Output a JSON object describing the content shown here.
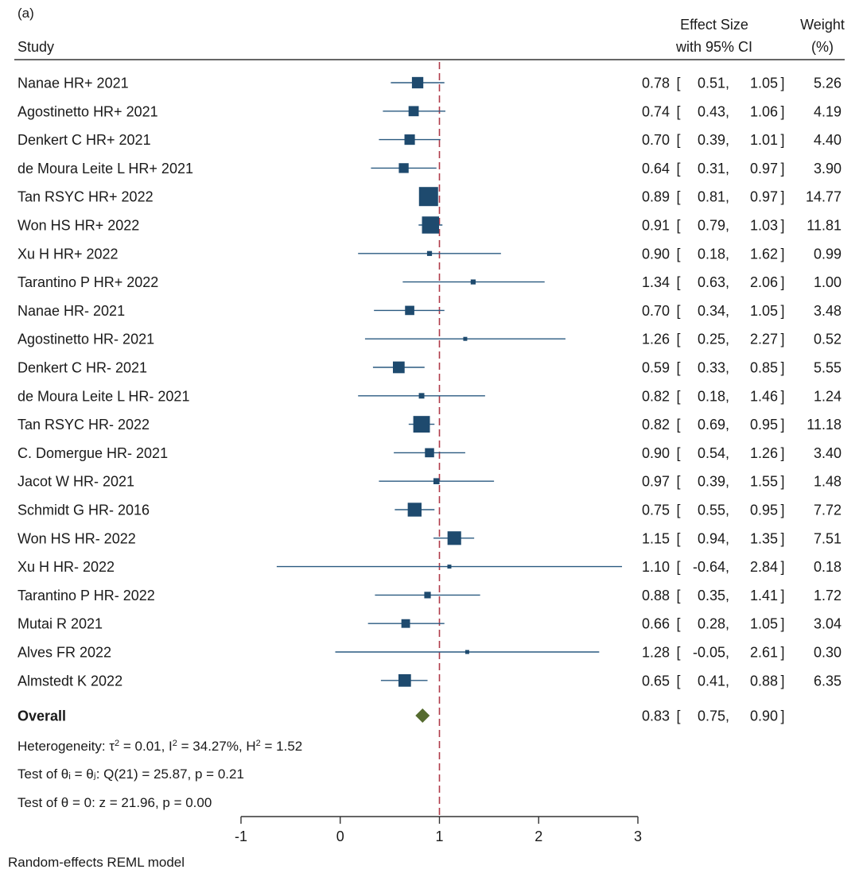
{
  "panel_label": "(a)",
  "headers": {
    "study": "Study",
    "effect_line1": "Effect Size",
    "effect_line2": "with 95% CI",
    "weight_line1": "Weight",
    "weight_line2": "(%)"
  },
  "chart_data": {
    "type": "forest",
    "xlim": [
      -1,
      3
    ],
    "x_ticks": [
      -1,
      0,
      1,
      2,
      3
    ],
    "reference_line": 1,
    "studies": [
      {
        "label": "Nanae HR+ 2021",
        "es": 0.78,
        "lo": 0.51,
        "hi": 1.05,
        "es_text": "0.78",
        "lo_text": "0.51",
        "hi_text": "1.05",
        "weight": 5.26,
        "weight_text": "5.26"
      },
      {
        "label": "Agostinetto HR+ 2021",
        "es": 0.74,
        "lo": 0.43,
        "hi": 1.06,
        "es_text": "0.74",
        "lo_text": "0.43",
        "hi_text": "1.06",
        "weight": 4.19,
        "weight_text": "4.19"
      },
      {
        "label": "Denkert C HR+ 2021",
        "es": 0.7,
        "lo": 0.39,
        "hi": 1.01,
        "es_text": "0.70",
        "lo_text": "0.39",
        "hi_text": "1.01",
        "weight": 4.4,
        "weight_text": "4.40"
      },
      {
        "label": "de Moura Leite L HR+ 2021",
        "es": 0.64,
        "lo": 0.31,
        "hi": 0.97,
        "es_text": "0.64",
        "lo_text": "0.31",
        "hi_text": "0.97",
        "weight": 3.9,
        "weight_text": "3.90"
      },
      {
        "label": "Tan RSYC HR+ 2022",
        "es": 0.89,
        "lo": 0.81,
        "hi": 0.97,
        "es_text": "0.89",
        "lo_text": "0.81",
        "hi_text": "0.97",
        "weight": 14.77,
        "weight_text": "14.77"
      },
      {
        "label": "Won HS HR+ 2022",
        "es": 0.91,
        "lo": 0.79,
        "hi": 1.03,
        "es_text": "0.91",
        "lo_text": "0.79",
        "hi_text": "1.03",
        "weight": 11.81,
        "weight_text": "11.81"
      },
      {
        "label": "Xu H HR+ 2022",
        "es": 0.9,
        "lo": 0.18,
        "hi": 1.62,
        "es_text": "0.90",
        "lo_text": "0.18",
        "hi_text": "1.62",
        "weight": 0.99,
        "weight_text": "0.99"
      },
      {
        "label": "Tarantino P HR+ 2022",
        "es": 1.34,
        "lo": 0.63,
        "hi": 2.06,
        "es_text": "1.34",
        "lo_text": "0.63",
        "hi_text": "2.06",
        "weight": 1.0,
        "weight_text": "1.00"
      },
      {
        "label": "Nanae HR- 2021",
        "es": 0.7,
        "lo": 0.34,
        "hi": 1.05,
        "es_text": "0.70",
        "lo_text": "0.34",
        "hi_text": "1.05",
        "weight": 3.48,
        "weight_text": "3.48"
      },
      {
        "label": "Agostinetto HR- 2021",
        "es": 1.26,
        "lo": 0.25,
        "hi": 2.27,
        "es_text": "1.26",
        "lo_text": "0.25",
        "hi_text": "2.27",
        "weight": 0.52,
        "weight_text": "0.52"
      },
      {
        "label": "Denkert C HR- 2021",
        "es": 0.59,
        "lo": 0.33,
        "hi": 0.85,
        "es_text": "0.59",
        "lo_text": "0.33",
        "hi_text": "0.85",
        "weight": 5.55,
        "weight_text": "5.55"
      },
      {
        "label": "de Moura Leite L HR- 2021",
        "es": 0.82,
        "lo": 0.18,
        "hi": 1.46,
        "es_text": "0.82",
        "lo_text": "0.18",
        "hi_text": "1.46",
        "weight": 1.24,
        "weight_text": "1.24"
      },
      {
        "label": "Tan RSYC HR- 2022",
        "es": 0.82,
        "lo": 0.69,
        "hi": 0.95,
        "es_text": "0.82",
        "lo_text": "0.69",
        "hi_text": "0.95",
        "weight": 11.18,
        "weight_text": "11.18"
      },
      {
        "label": "C. Domergue HR- 2021",
        "es": 0.9,
        "lo": 0.54,
        "hi": 1.26,
        "es_text": "0.90",
        "lo_text": "0.54",
        "hi_text": "1.26",
        "weight": 3.4,
        "weight_text": "3.40"
      },
      {
        "label": "Jacot W HR- 2021",
        "es": 0.97,
        "lo": 0.39,
        "hi": 1.55,
        "es_text": "0.97",
        "lo_text": "0.39",
        "hi_text": "1.55",
        "weight": 1.48,
        "weight_text": "1.48"
      },
      {
        "label": "Schmidt G HR- 2016",
        "es": 0.75,
        "lo": 0.55,
        "hi": 0.95,
        "es_text": "0.75",
        "lo_text": "0.55",
        "hi_text": "0.95",
        "weight": 7.72,
        "weight_text": "7.72"
      },
      {
        "label": "Won HS HR- 2022",
        "es": 1.15,
        "lo": 0.94,
        "hi": 1.35,
        "es_text": "1.15",
        "lo_text": "0.94",
        "hi_text": "1.35",
        "weight": 7.51,
        "weight_text": "7.51"
      },
      {
        "label": "Xu H HR- 2022",
        "es": 1.1,
        "lo": -0.64,
        "hi": 2.84,
        "es_text": "1.10",
        "lo_text": "-0.64",
        "hi_text": "2.84",
        "weight": 0.18,
        "weight_text": "0.18"
      },
      {
        "label": "Tarantino P HR- 2022",
        "es": 0.88,
        "lo": 0.35,
        "hi": 1.41,
        "es_text": "0.88",
        "lo_text": "0.35",
        "hi_text": "1.41",
        "weight": 1.72,
        "weight_text": "1.72"
      },
      {
        "label": "Mutai R 2021",
        "es": 0.66,
        "lo": 0.28,
        "hi": 1.05,
        "es_text": "0.66",
        "lo_text": "0.28",
        "hi_text": "1.05",
        "weight": 3.04,
        "weight_text": "3.04"
      },
      {
        "label": "Alves FR 2022",
        "es": 1.28,
        "lo": -0.05,
        "hi": 2.61,
        "es_text": "1.28",
        "lo_text": "-0.05",
        "hi_text": "2.61",
        "weight": 0.3,
        "weight_text": "0.30"
      },
      {
        "label": "Almstedt K 2022",
        "es": 0.65,
        "lo": 0.41,
        "hi": 0.88,
        "es_text": "0.65",
        "lo_text": "0.41",
        "hi_text": "0.88",
        "weight": 6.35,
        "weight_text": "6.35"
      }
    ],
    "overall": {
      "label": "Overall",
      "es": 0.83,
      "lo": 0.75,
      "hi": 0.9,
      "es_text": "0.83",
      "lo_text": "0.75",
      "hi_text": "0.90"
    },
    "heterogeneity": {
      "prefix": "Heterogeneity: τ",
      "tau2": "0.01",
      "i2": "34.27%",
      "h2": "1.52"
    },
    "test_theta_i": {
      "text": "Test of θᵢ = θⱼ: Q(21) = 25.87, p = 0.21"
    },
    "test_theta_0": {
      "text": "Test of θ = 0: z = 21.96, p = 0.00"
    },
    "footnote": "Random-effects REML model"
  },
  "colors": {
    "marker": "#1e4a6e",
    "ci_line": "#2a5a80",
    "diamond": "#556b2f",
    "ref_line": "#b03a4a",
    "axis": "#333333"
  }
}
